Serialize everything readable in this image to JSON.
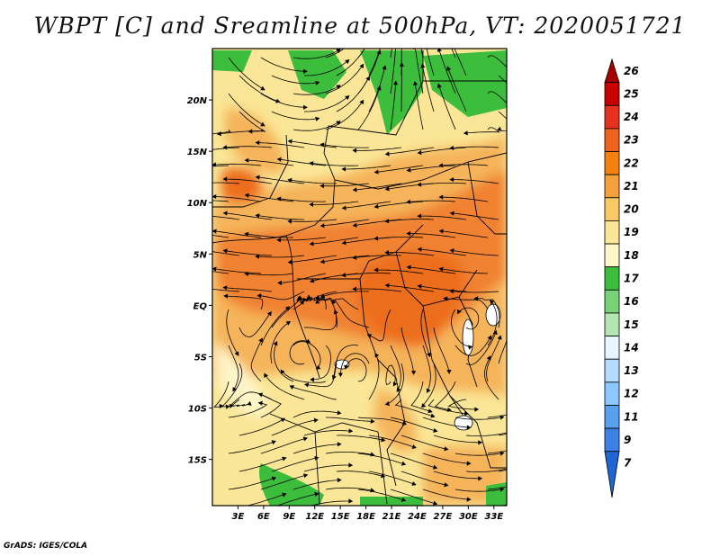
{
  "title": "WBPT [C] and Sreamline at 500hPa, VT: 2020051721",
  "credit": "GrADS: IGES/COLA",
  "map": {
    "lon_labels": [
      "3E",
      "6E",
      "9E",
      "12E",
      "15E",
      "18E",
      "21E",
      "24E",
      "27E",
      "30E",
      "33E"
    ],
    "lon_values": [
      3,
      6,
      9,
      12,
      15,
      18,
      21,
      24,
      27,
      30,
      33
    ],
    "lat_labels": [
      "20N",
      "15N",
      "10N",
      "5N",
      "EQ",
      "5S",
      "10S",
      "15S"
    ],
    "lat_values": [
      20,
      15,
      10,
      5,
      0,
      -5,
      -10,
      -15
    ],
    "lon_range": [
      0,
      34.5
    ],
    "lat_range": [
      -19.5,
      25
    ]
  },
  "colorbar": {
    "levels": [
      "26",
      "25",
      "24",
      "23",
      "22",
      "21",
      "20",
      "19",
      "18",
      "17",
      "16",
      "15",
      "14",
      "13",
      "12",
      "11",
      "9",
      "7"
    ],
    "colors": [
      "#a50000",
      "#c80000",
      "#e6321e",
      "#f0641e",
      "#f5820f",
      "#f5a03c",
      "#fac864",
      "#fae696",
      "#fff5c8",
      "#3cbe3c",
      "#78d278",
      "#b4e6b4",
      "#e6f5ff",
      "#b4dcff",
      "#8cc8ff",
      "#5aa0f0",
      "#3c82e6",
      "#1e64d2"
    ]
  },
  "colors": {
    "warm_orange": "#f08232",
    "light_orange": "#f5b45a",
    "yellow": "#fae696",
    "pale": "#fff5c8",
    "green": "#3cbe3c"
  }
}
